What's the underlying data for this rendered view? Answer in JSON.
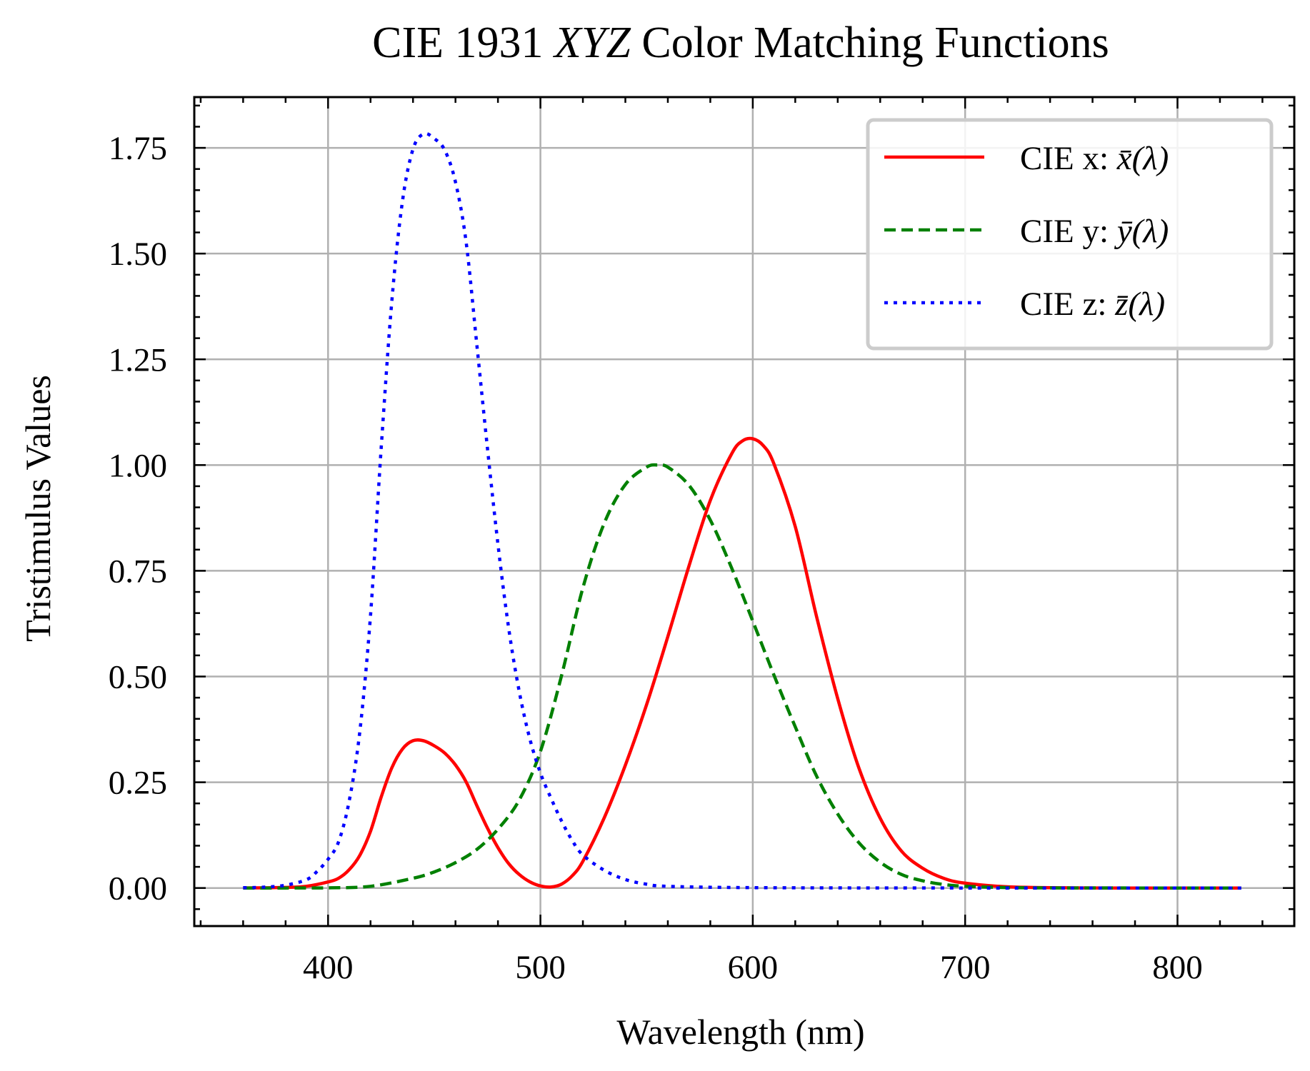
{
  "chart_data": {
    "type": "line",
    "title": "CIE 1931 XYZ Color Matching Functions",
    "title_parts": {
      "prefix": "CIE 1931 ",
      "italic": "XYZ",
      "suffix": " Color Matching Functions"
    },
    "xlabel": "Wavelength (nm)",
    "ylabel": "Tristimulus Values",
    "xlim": [
      337,
      855
    ],
    "ylim": [
      -0.09,
      1.87
    ],
    "xticks": [
      400,
      500,
      600,
      700,
      800
    ],
    "xtick_labels": [
      "400",
      "500",
      "600",
      "700",
      "800"
    ],
    "yticks": [
      0,
      0.25,
      0.5,
      0.75,
      1.0,
      1.25,
      1.5,
      1.75
    ],
    "ytick_labels": [
      "0.00",
      "0.25",
      "0.50",
      "0.75",
      "1.00",
      "1.25",
      "1.50",
      "1.75"
    ],
    "x_minor_step": 20,
    "y_minor_step": 0.05,
    "grid": true,
    "legend_position": "top-right",
    "series": [
      {
        "name": "CIE x: x̄(λ)",
        "label_prefix": "CIE x: ",
        "symbol": "x̄(λ)",
        "color": "#ff0000",
        "style": "solid",
        "x": [
          360,
          380,
          390,
          400,
          405,
          410,
          415,
          420,
          425,
          430,
          435,
          440,
          445,
          450,
          455,
          460,
          465,
          470,
          475,
          480,
          485,
          490,
          495,
          500,
          505,
          510,
          515,
          520,
          530,
          540,
          550,
          560,
          570,
          580,
          590,
          595,
          600,
          605,
          610,
          620,
          630,
          640,
          650,
          660,
          670,
          680,
          690,
          700,
          720,
          750,
          800,
          830
        ],
        "y": [
          0.0001,
          0.0014,
          0.0042,
          0.0143,
          0.0232,
          0.0435,
          0.0776,
          0.1344,
          0.2148,
          0.2839,
          0.3285,
          0.3483,
          0.3481,
          0.3362,
          0.3187,
          0.2908,
          0.2511,
          0.1954,
          0.1421,
          0.0956,
          0.058,
          0.032,
          0.0147,
          0.0049,
          0.0024,
          0.0093,
          0.0291,
          0.0633,
          0.1655,
          0.2904,
          0.4334,
          0.5945,
          0.7621,
          0.9163,
          1.0263,
          1.0567,
          1.0622,
          1.0456,
          1.0026,
          0.8544,
          0.6424,
          0.4479,
          0.2835,
          0.1649,
          0.0874,
          0.0468,
          0.0227,
          0.0114,
          0.0029,
          0.0003,
          0.0,
          0.0
        ]
      },
      {
        "name": "CIE y: ȳ(λ)",
        "label_prefix": "CIE y: ",
        "symbol": "ȳ(λ)",
        "color": "#008000",
        "style": "dashed",
        "x": [
          360,
          380,
          400,
          420,
          440,
          450,
          460,
          470,
          480,
          490,
          500,
          510,
          520,
          530,
          540,
          550,
          555,
          560,
          570,
          580,
          590,
          600,
          610,
          620,
          630,
          640,
          650,
          660,
          670,
          680,
          690,
          700,
          720,
          750,
          800,
          830
        ],
        "y": [
          0.0,
          0.0,
          0.0004,
          0.004,
          0.023,
          0.038,
          0.06,
          0.091,
          0.139,
          0.208,
          0.323,
          0.503,
          0.71,
          0.862,
          0.954,
          0.995,
          1.0,
          0.995,
          0.952,
          0.87,
          0.757,
          0.631,
          0.503,
          0.381,
          0.265,
          0.175,
          0.107,
          0.061,
          0.032,
          0.017,
          0.0082,
          0.0041,
          0.001,
          0.0001,
          0.0,
          0.0
        ]
      },
      {
        "name": "CIE z: z̄(λ)",
        "label_prefix": "CIE z: ",
        "symbol": "z̄(λ)",
        "color": "#0000ff",
        "style": "dotted",
        "x": [
          360,
          370,
          380,
          390,
          395,
          400,
          405,
          410,
          415,
          420,
          425,
          430,
          435,
          440,
          445,
          450,
          455,
          460,
          465,
          470,
          475,
          480,
          485,
          490,
          495,
          500,
          505,
          510,
          515,
          520,
          530,
          540,
          550,
          560,
          600,
          700,
          800,
          830
        ],
        "y": [
          0.0006,
          0.002,
          0.0065,
          0.02,
          0.04,
          0.068,
          0.11,
          0.207,
          0.372,
          0.646,
          1.039,
          1.386,
          1.623,
          1.747,
          1.783,
          1.772,
          1.744,
          1.669,
          1.528,
          1.287,
          1.042,
          0.813,
          0.616,
          0.465,
          0.353,
          0.272,
          0.212,
          0.158,
          0.112,
          0.078,
          0.042,
          0.02,
          0.009,
          0.004,
          0.0008,
          0.0,
          0.0,
          0.0
        ]
      }
    ]
  }
}
